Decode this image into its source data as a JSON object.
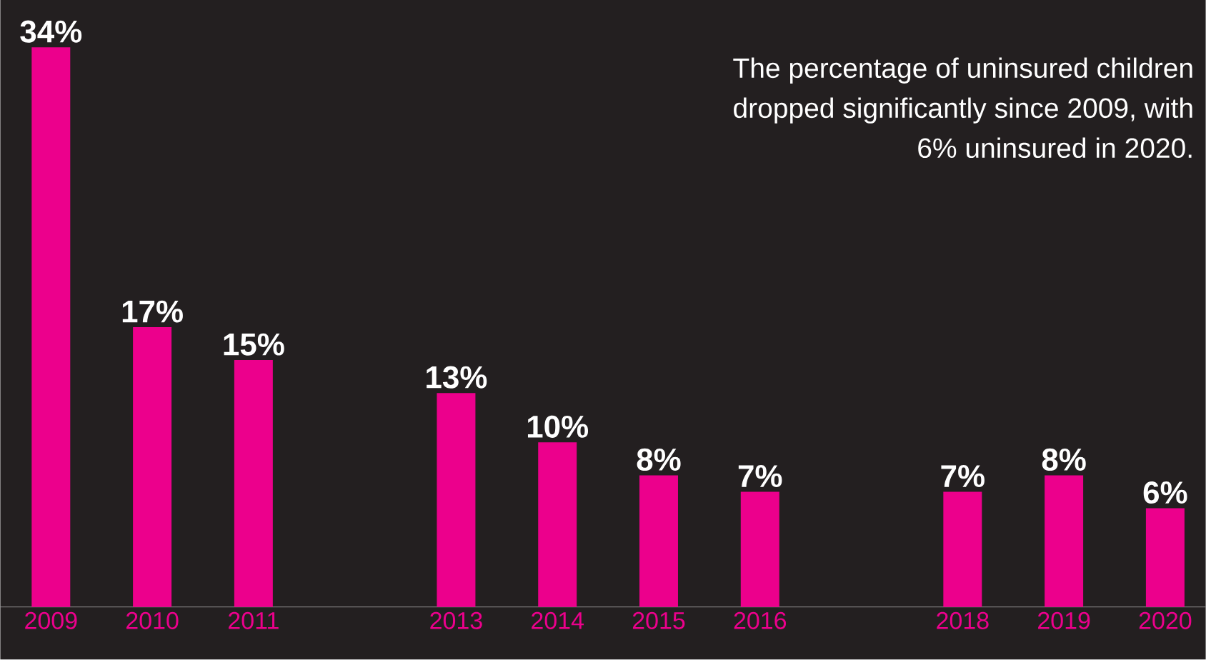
{
  "chart_data": {
    "type": "bar",
    "categories": [
      "2009",
      "2010",
      "2011",
      null,
      "2013",
      "2014",
      "2015",
      "2016",
      null,
      "2018",
      "2019",
      "2020"
    ],
    "values": [
      34,
      17,
      15,
      null,
      13,
      10,
      8,
      7,
      null,
      7,
      8,
      6
    ],
    "color": "#ec008c",
    "value_labels": [
      "34%",
      "17%",
      "15%",
      null,
      "13%",
      "10%",
      "8%",
      "7%",
      null,
      "7%",
      "8%",
      "6%"
    ],
    "annotations": [
      "The percentage of uninsured children dropped significantly since 2009, with 6% uninsured in 2020."
    ],
    "grid": false
  }
}
